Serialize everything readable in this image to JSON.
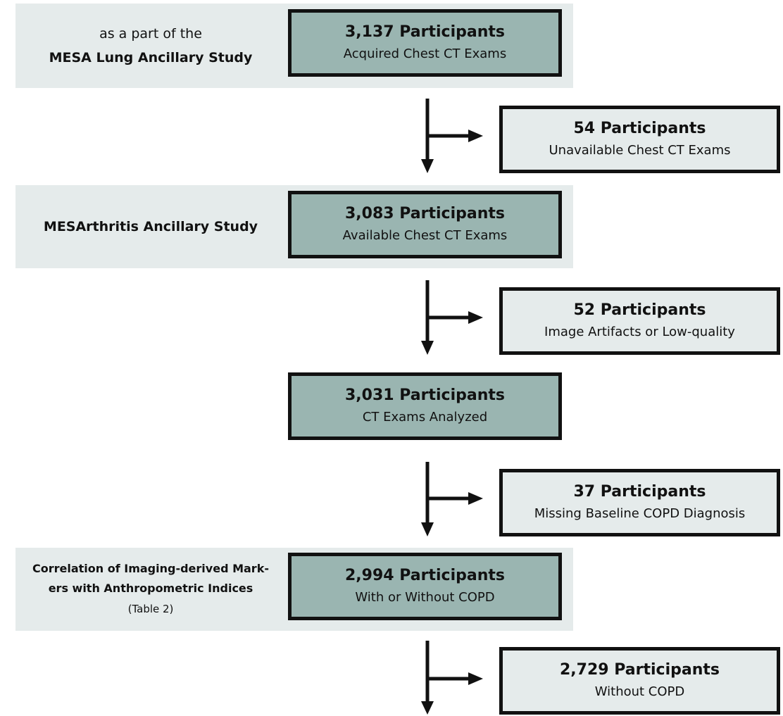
{
  "bands": [
    {
      "line1": "as a part of the",
      "line2": "MESA Lung Ancillary Study"
    },
    {
      "line1": "",
      "line2": "MESArthritis Ancillary Study"
    },
    {
      "line1": "Correlation of Imaging-derived Mark-",
      "line2": "ers with Anthropometric Indices",
      "line3": "(Table 2)"
    }
  ],
  "main_boxes": [
    {
      "count": "3,137 Participants",
      "desc": "Acquired Chest CT Exams"
    },
    {
      "count": "3,083 Participants",
      "desc": "Available Chest CT Exams"
    },
    {
      "count": "3,031 Participants",
      "desc": "CT Exams Analyzed"
    },
    {
      "count": "2,994 Participants",
      "desc": "With or Without COPD"
    }
  ],
  "exclusion_boxes": [
    {
      "count": "54 Participants",
      "desc": "Unavailable Chest CT Exams"
    },
    {
      "count": "52 Participants",
      "desc": "Image Artifacts or Low-quality"
    },
    {
      "count": "37 Participants",
      "desc": "Missing Baseline COPD Diagnosis"
    },
    {
      "count": "2,729 Participants",
      "desc": "Without COPD"
    }
  ]
}
